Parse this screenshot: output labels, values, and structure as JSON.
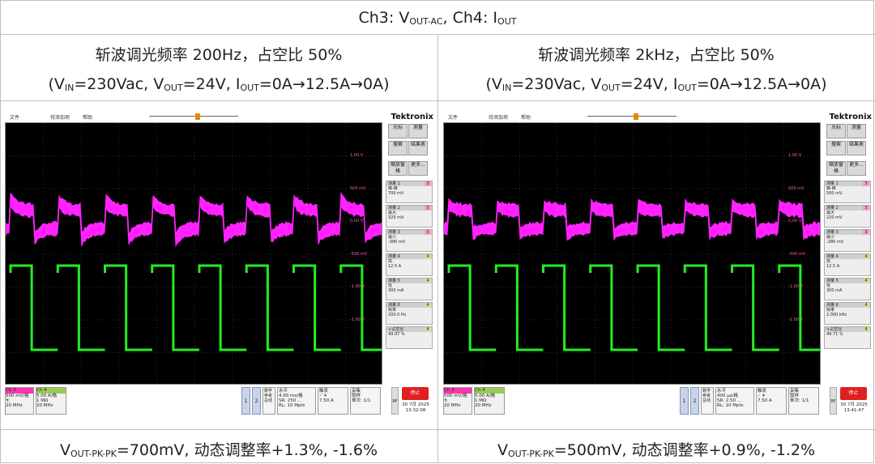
{
  "header": {
    "pre": "Ch3: V",
    "sub1": "OUT-AC",
    "mid": ", Ch4: I",
    "sub2": "OUT"
  },
  "panels": [
    {
      "title": "斩波调光频率 200Hz，占空比 50%",
      "cond": {
        "a": "(V",
        "b": "IN",
        "c": "=230Vac, V",
        "d": "OUT",
        "e": "=24V, I",
        "f": "OUT",
        "g": "=0A→12.5A→0A)"
      },
      "result": {
        "a": "V",
        "b": "OUT-PK-PK",
        "c": "=700mV,  动态调整率+1.3%, -1.6%"
      },
      "scope": {
        "menu": [
          "文件",
          "待添加项",
          "帮助"
        ],
        "brand": "Tektronix",
        "side_btns": [
          "光标",
          "测量",
          "搜索",
          "结果表",
          "缩放窗格",
          "更多..."
        ],
        "meas": [
          {
            "h": "测量 1",
            "n": "3",
            "l1": "峰-峰",
            "l2": "700 mV"
          },
          {
            "h": "测量 2",
            "n": "3",
            "l1": "最大",
            "l2": "320 mV"
          },
          {
            "h": "测量 3",
            "n": "3",
            "l1": "最小",
            "l2": "-380 mV"
          },
          {
            "h": "测量 4",
            "n": "4",
            "l1": "高",
            "l2": "12.5 A"
          },
          {
            "h": "测量 5",
            "n": "4",
            "l1": "低",
            "l2": "300 mA"
          },
          {
            "h": "测量 6",
            "n": "4",
            "l1": "频率",
            "l2": "200.0 Hz"
          },
          {
            "h": "+占空比",
            "n": "4",
            "l1": "49.97 %",
            "l2": ""
          }
        ],
        "volts": [
          "1.00 V",
          "500 mV",
          "0.00 V",
          "-500 mV",
          "-1.00 V",
          "-1.50 V"
        ],
        "ch3": {
          "name": "Ch 3",
          "l1": "500 mV/格",
          "l2": "↯",
          "l3": "20 MHz"
        },
        "ch4": {
          "name": "Ch 4",
          "l1": "5.00 A/格",
          "l2": "1 MΩ",
          "l3": "20 MHz"
        },
        "btn1": "1",
        "btn2": "2",
        "extra": "数学 参考 总线",
        "horiz": {
          "h": "水平",
          "l1": "4.00 ms/格",
          "l2": "SR: 250 ...",
          "l3": "RL: 10 Mpts"
        },
        "trig": {
          "h": "触发",
          "l1": "⟋ 4",
          "l2": "7.50 A"
        },
        "acq": {
          "h": "采集",
          "l1": "取样",
          "l2": "单次: 1/1"
        },
        "stop": "停止",
        "rf": "RF",
        "date": "30 7月 2025",
        "time": "13:32:08",
        "freq_hz": 200,
        "duty": 0.5
      }
    },
    {
      "title": "斩波调光频率 2kHz，占空比 50%",
      "cond": {
        "a": "(V",
        "b": "IN",
        "c": "=230Vac, V",
        "d": "OUT",
        "e": "=24V, I",
        "f": "OUT",
        "g": "=0A→12.5A→0A)"
      },
      "result": {
        "a": "V",
        "b": "OUT-PK-PK",
        "c": "=500mV,  动态调整率+0.9%, -1.2%"
      },
      "scope": {
        "menu": [
          "文件",
          "待添加项",
          "帮助"
        ],
        "brand": "Tektronix",
        "side_btns": [
          "光标",
          "测量",
          "搜索",
          "结果表",
          "缩放窗格",
          "更多..."
        ],
        "meas": [
          {
            "h": "测量 1",
            "n": "3",
            "l1": "峰-峰",
            "l2": "500 mV"
          },
          {
            "h": "测量 2",
            "n": "3",
            "l1": "最大",
            "l2": "220 mV"
          },
          {
            "h": "测量 3",
            "n": "3",
            "l1": "最小",
            "l2": "-280 mV"
          },
          {
            "h": "测量 4",
            "n": "4",
            "l1": "高",
            "l2": "12.5 A"
          },
          {
            "h": "测量 5",
            "n": "4",
            "l1": "低",
            "l2": "300 mA"
          },
          {
            "h": "测量 6",
            "n": "4",
            "l1": "频率",
            "l2": "2.000 kHz"
          },
          {
            "h": "+占空比",
            "n": "4",
            "l1": "49.71 %",
            "l2": ""
          }
        ],
        "volts": [
          "1.00 V",
          "500 mV",
          "0.00 V",
          "-500 mV",
          "-1.00 V",
          "-1.50 V"
        ],
        "ch3": {
          "name": "Ch 3",
          "l1": "500 mV/格",
          "l2": "↯",
          "l3": "20 MHz"
        },
        "ch4": {
          "name": "Ch 4",
          "l1": "5.00 A/格",
          "l2": "1 MΩ",
          "l3": "20 MHz"
        },
        "btn1": "1",
        "btn2": "2",
        "extra": "数学 参考 总线",
        "horiz": {
          "h": "水平",
          "l1": "400 µs/格",
          "l2": "SR: 2.50 ...",
          "l3": "RL: 10 Mpts"
        },
        "trig": {
          "h": "触发",
          "l1": "⟋ 4",
          "l2": "7.50 A"
        },
        "acq": {
          "h": "采集",
          "l1": "取样",
          "l2": "单次: 1/1"
        },
        "stop": "停止",
        "rf": "RF",
        "date": "30 7月 2025",
        "time": "13:41:47",
        "freq_hz": 2000,
        "duty": 0.5
      }
    }
  ],
  "colors": {
    "ch3": "#ff22ff",
    "ch4": "#22ee22",
    "stop": "#e02020",
    "grid": "#555555"
  }
}
